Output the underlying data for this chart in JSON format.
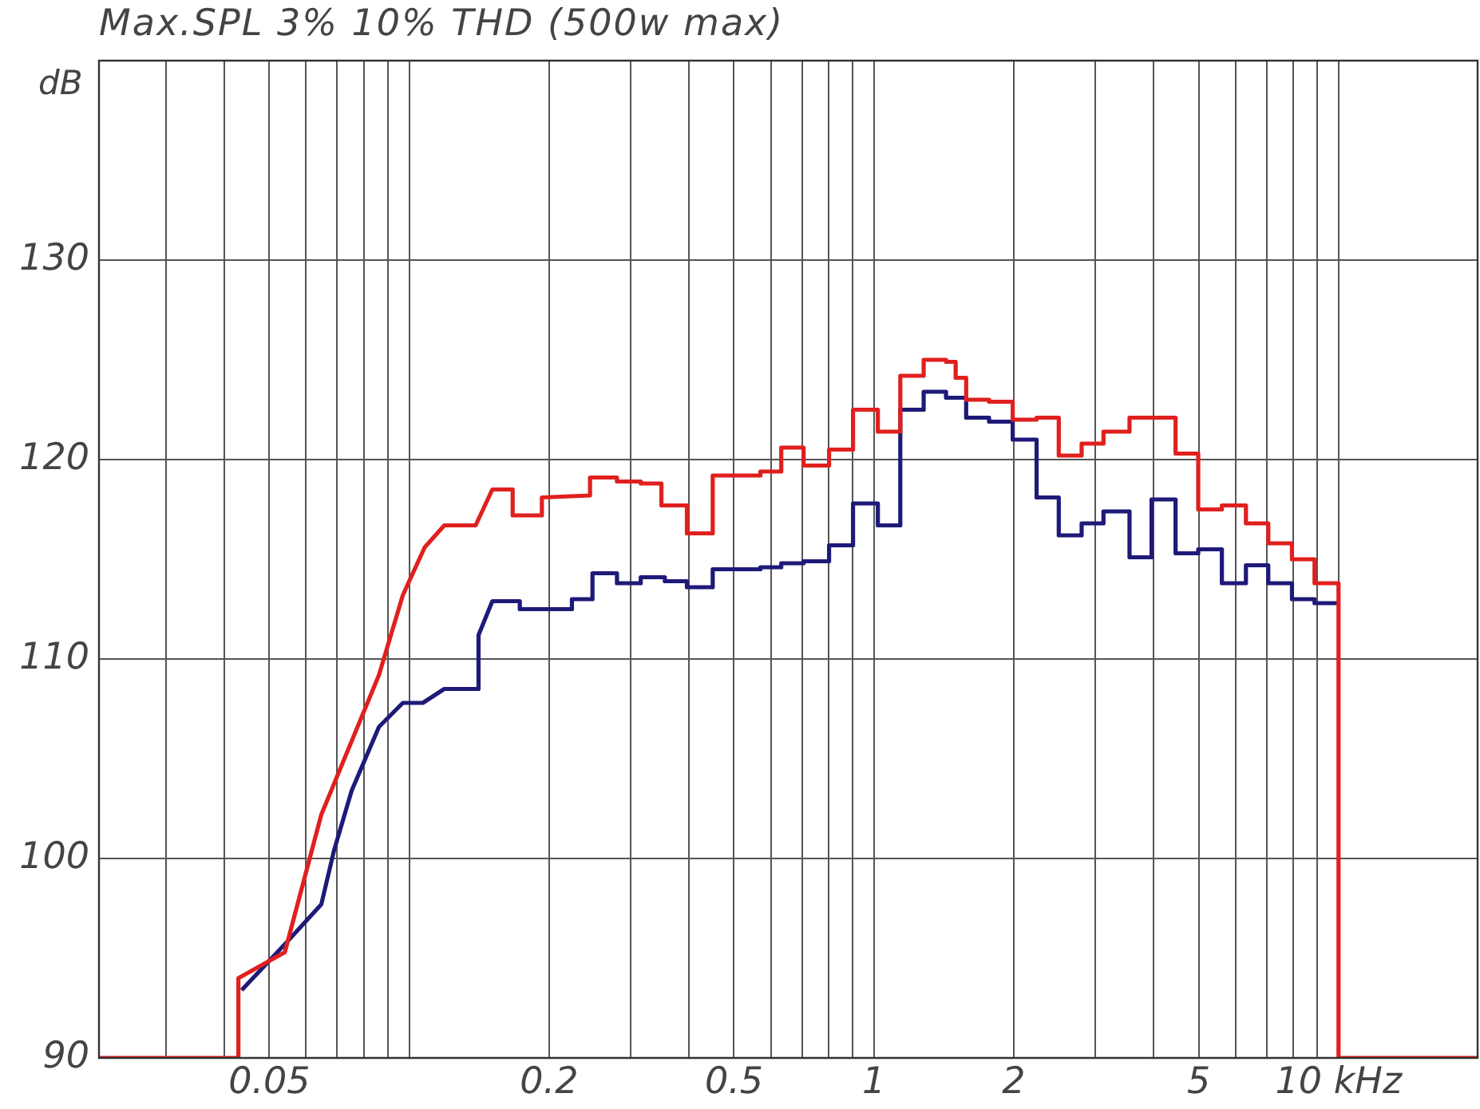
{
  "chart_data": {
    "type": "line",
    "title": "Max.SPL 3% 10% THD (500w max)",
    "ylabel": "dB",
    "log": "x",
    "grid": true,
    "legend": false,
    "marker": "none",
    "line_style": "solid",
    "xlim": [
      0.0215,
      20
    ],
    "ylim": [
      90,
      140
    ],
    "xticks": [
      {
        "value": 0.03,
        "label": null
      },
      {
        "value": 0.04,
        "label": null
      },
      0.05,
      {
        "value": 0.06,
        "label": null
      },
      {
        "value": 0.07,
        "label": null
      },
      {
        "value": 0.08,
        "label": null
      },
      {
        "value": 0.09,
        "label": null
      },
      {
        "value": 0.1,
        "label": null
      },
      0.2,
      {
        "value": 0.3,
        "label": null
      },
      {
        "value": 0.4,
        "label": null
      },
      0.5,
      {
        "value": 0.6,
        "label": null
      },
      {
        "value": 0.7,
        "label": null
      },
      {
        "value": 0.8,
        "label": null
      },
      {
        "value": 0.9,
        "label": null
      },
      1,
      2,
      {
        "value": 3,
        "label": null
      },
      {
        "value": 4,
        "label": null
      },
      5,
      {
        "value": 6,
        "label": null
      },
      {
        "value": 7,
        "label": null
      },
      {
        "value": 8,
        "label": null
      },
      {
        "value": 9,
        "label": null
      },
      {
        "value": 10,
        "label": "10 kHz"
      }
    ],
    "yticks": [
      90,
      100,
      110,
      120,
      130,
      {
        "value": 140,
        "label": null
      }
    ],
    "series": [
      {
        "color": "#e0201e",
        "x": [
          0.0215,
          0.0429,
          0.0429,
          0.054,
          0.0647,
          0.0861,
          0.0969,
          0.108,
          0.119,
          0.139,
          0.151,
          0.167,
          0.167,
          0.193,
          0.193,
          0.245,
          0.245,
          0.28,
          0.28,
          0.315,
          0.315,
          0.349,
          0.349,
          0.396,
          0.396,
          0.45,
          0.45,
          0.57,
          0.57,
          0.632,
          0.632,
          0.706,
          0.706,
          0.801,
          0.801,
          0.902,
          0.902,
          1.02,
          1.02,
          1.14,
          1.14,
          1.28,
          1.28,
          1.43,
          1.43,
          1.5,
          1.5,
          1.58,
          1.58,
          1.77,
          1.77,
          1.99,
          1.99,
          2.24,
          2.24,
          2.5,
          2.5,
          2.8,
          2.8,
          3.12,
          3.12,
          3.55,
          3.55,
          4.46,
          4.46,
          4.99,
          4.99,
          5.61,
          5.61,
          6.32,
          6.32,
          7.06,
          7.06,
          7.94,
          7.94,
          8.88,
          8.88,
          10,
          10,
          20
        ],
        "values": [
          90,
          90,
          94,
          95.3,
          102.2,
          109.2,
          113.2,
          115.6,
          116.7,
          116.7,
          118.5,
          118.5,
          117.2,
          117.2,
          118.1,
          118.2,
          119.1,
          119.1,
          118.9,
          118.9,
          118.8,
          118.8,
          117.7,
          117.7,
          116.3,
          116.3,
          119.2,
          119.2,
          119.4,
          119.4,
          120.6,
          120.6,
          119.7,
          119.7,
          120.5,
          120.5,
          122.5,
          122.5,
          121.4,
          121.4,
          124.2,
          124.2,
          125,
          125,
          124.9,
          124.9,
          124.1,
          124.1,
          123,
          123,
          122.9,
          122.9,
          122,
          122,
          122.1,
          122.1,
          120.2,
          120.2,
          120.8,
          120.8,
          121.4,
          121.4,
          122.1,
          122.1,
          120.3,
          120.3,
          117.5,
          117.5,
          117.7,
          117.7,
          116.8,
          116.8,
          115.8,
          115.8,
          115,
          115,
          113.8,
          113.8,
          90,
          90
        ]
      },
      {
        "color": "#1e1a78",
        "x": [
          0.0436,
          0.054,
          0.0647,
          0.0689,
          0.0752,
          0.0861,
          0.0969,
          0.107,
          0.119,
          0.141,
          0.141,
          0.151,
          0.173,
          0.173,
          0.224,
          0.224,
          0.248,
          0.248,
          0.28,
          0.28,
          0.315,
          0.315,
          0.355,
          0.355,
          0.396,
          0.396,
          0.45,
          0.45,
          0.57,
          0.57,
          0.632,
          0.632,
          0.706,
          0.706,
          0.801,
          0.801,
          0.902,
          0.902,
          1.02,
          1.02,
          1.14,
          1.14,
          1.28,
          1.28,
          1.43,
          1.43,
          1.58,
          1.58,
          1.77,
          1.77,
          1.99,
          1.99,
          2.24,
          2.24,
          2.5,
          2.5,
          2.8,
          2.8,
          3.12,
          3.12,
          3.55,
          3.55,
          3.96,
          3.96,
          4.46,
          4.46,
          4.99,
          4.99,
          5.61,
          5.61,
          6.32,
          6.32,
          7.06,
          7.06,
          7.94,
          7.94,
          8.88,
          8.88,
          10
        ],
        "values": [
          93.4,
          95.7,
          97.7,
          100.4,
          103.4,
          106.6,
          107.8,
          107.8,
          108.5,
          108.5,
          111.2,
          112.9,
          112.9,
          112.5,
          112.5,
          113,
          113,
          114.3,
          114.3,
          113.8,
          113.8,
          114.1,
          114.1,
          113.9,
          113.9,
          113.6,
          113.6,
          114.5,
          114.5,
          114.6,
          114.6,
          114.8,
          114.8,
          114.9,
          114.9,
          115.7,
          115.7,
          117.8,
          117.8,
          116.7,
          116.7,
          122.5,
          122.5,
          123.4,
          123.4,
          123.1,
          123.1,
          122.1,
          122.1,
          121.9,
          121.9,
          121,
          121,
          118.1,
          118.1,
          116.2,
          116.2,
          116.8,
          116.8,
          117.4,
          117.4,
          115.1,
          115.1,
          118,
          118,
          115.3,
          115.3,
          115.5,
          115.5,
          113.8,
          113.8,
          114.7,
          114.7,
          113.8,
          113.8,
          113,
          113,
          112.8,
          112.8
        ]
      }
    ]
  }
}
